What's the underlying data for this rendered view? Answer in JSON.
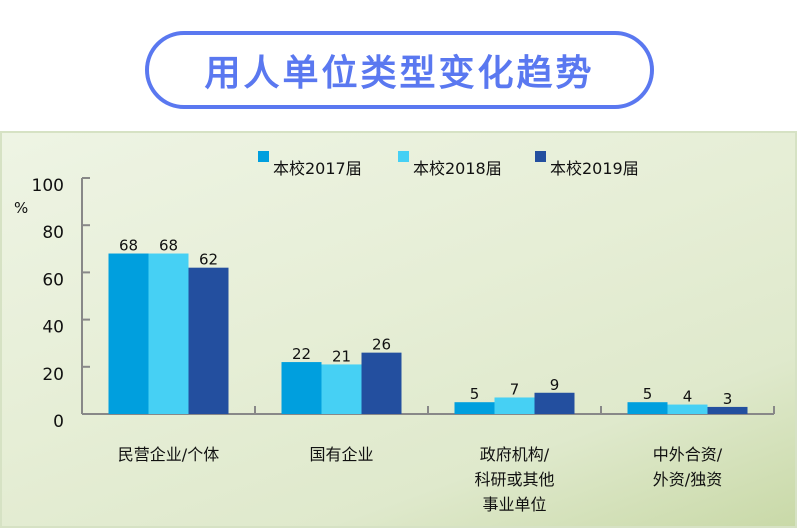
{
  "title": "用人单位类型变化趋势",
  "chart_data": {
    "type": "bar",
    "title": "用人单位类型变化趋势",
    "ylabel": "%",
    "xlabel": "",
    "ylim": [
      0,
      100
    ],
    "yticks": [
      0,
      20,
      40,
      60,
      80,
      100
    ],
    "legend_position": "top",
    "categories": [
      [
        "民营企业/个体"
      ],
      [
        "国有企业"
      ],
      [
        "政府机构/",
        "科研或其他",
        "事业单位"
      ],
      [
        "中外合资/",
        "外资/独资"
      ]
    ],
    "series": [
      {
        "name": "本校2017届",
        "color": "#009fde",
        "values": [
          68,
          22,
          5,
          5
        ]
      },
      {
        "name": "本校2018届",
        "color": "#46d0f4",
        "values": [
          68,
          21,
          7,
          4
        ]
      },
      {
        "name": "本校2019届",
        "color": "#234f9f",
        "values": [
          62,
          26,
          9,
          3
        ]
      }
    ]
  }
}
